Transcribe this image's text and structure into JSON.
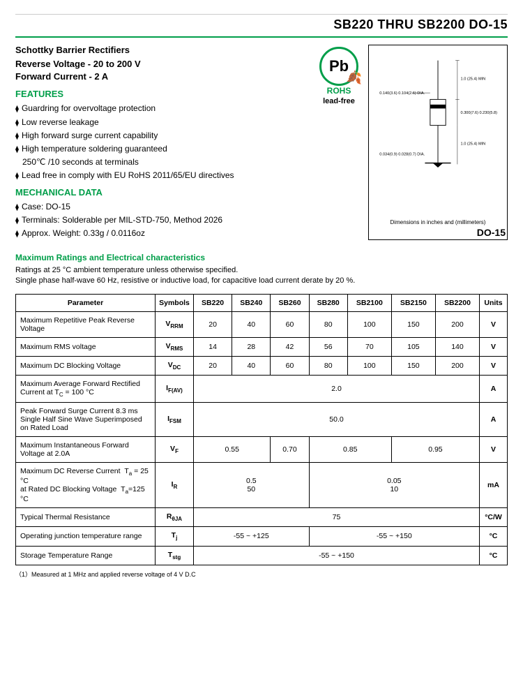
{
  "header": {
    "title": "SB220 THRU SB2200  DO-15"
  },
  "product": {
    "subtitle": "Schottky Barrier Rectifiers",
    "spec_line1": "Reverse Voltage - 20 to 200 V",
    "spec_line2": "Forward Current - 2 A"
  },
  "features": {
    "heading": "FEATURES",
    "items": [
      "Guardring for overvoltage protection",
      "Low reverse leakage",
      "High forward surge current capability",
      "High temperature soldering guaranteed"
    ],
    "indent_line": "250℃ /10 seconds at terminals",
    "last_item": "Lead free in comply with EU RoHS 2011/65/EU directives"
  },
  "mechanical": {
    "heading": "MECHANICAL DATA",
    "items": [
      "Case: DO-15",
      "Terminals: Solderable per MIL-STD-750, Method 2026",
      "Approx. Weight: 0.33g / 0.0116oz"
    ]
  },
  "badge": {
    "pb": "Pb",
    "rohs": "ROHS",
    "leadfree": "lead-free"
  },
  "package": {
    "caption": "Dimensions in inches and (millimeters)",
    "label": "DO-15",
    "dim_top": "1.0 (25.4) MIN",
    "dim_body_w": "0.140(3.6) 0.104(2.6) DIA.",
    "dim_body_h": "0.300(7.6) 0.230(5.8)",
    "dim_bot": "1.0 (25.4) MIN",
    "dim_lead": "0.034(0.9) 0.028(0.7) DIA."
  },
  "ratings": {
    "heading": "Maximum Ratings and Electrical characteristics",
    "note1": "Ratings at 25 °C ambient temperature unless otherwise specified.",
    "note2": "Single phase half-wave 60 Hz, resistive or inductive load, for capacitive load current derate by 20 %.",
    "columns": [
      "Parameter",
      "Symbols",
      "SB220",
      "SB240",
      "SB260",
      "SB280",
      "SB2100",
      "SB2150",
      "SB2200",
      "Units"
    ],
    "rows": [
      {
        "param": "Maximum Repetitive Peak Reverse Voltage",
        "sym": "V<sub>RRM</sub>",
        "cells": [
          "20",
          "40",
          "60",
          "80",
          "100",
          "150",
          "200"
        ],
        "unit": "V"
      },
      {
        "param": "Maximum RMS voltage",
        "sym": "V<sub>RMS</sub>",
        "cells": [
          "14",
          "28",
          "42",
          "56",
          "70",
          "105",
          "140"
        ],
        "unit": "V"
      },
      {
        "param": "Maximum DC Blocking Voltage",
        "sym": "V<sub>DC</sub>",
        "cells": [
          "20",
          "40",
          "60",
          "80",
          "100",
          "150",
          "200"
        ],
        "unit": "V"
      },
      {
        "param": "Maximum Average Forward Rectified Current at T<sub>C</sub> = 100 °C",
        "sym": "I<sub>F(AV)</sub>",
        "span": {
          "colspan": 7,
          "text": "2.0"
        },
        "unit": "A"
      },
      {
        "param": "Peak Forward Surge Current 8.3 ms Single Half Sine Wave Superimposed on Rated Load",
        "sym": "I<sub>FSM</sub>",
        "span": {
          "colspan": 7,
          "text": "50.0"
        },
        "unit": "A"
      }
    ],
    "vf_row": {
      "param": "Maximum Instantaneous Forward Voltage at 2.0A",
      "sym": "V<sub>F</sub>",
      "groups": [
        {
          "span": 2,
          "text": "0.55"
        },
        {
          "span": 1,
          "text": "0.70"
        },
        {
          "span": 2,
          "text": "0.85"
        },
        {
          "span": 2,
          "text": "0.95"
        }
      ],
      "unit": "V"
    },
    "ir_row": {
      "param": "Maximum DC Reverse Current&nbsp;&nbsp;T<sub>a</sub> = 25 °C<br>at Rated DC Blocking Voltage&nbsp;&nbsp;T<sub>a</sub>=125 °C",
      "sym": "I<sub>R</sub>",
      "groups": [
        {
          "span": 3,
          "text": "0.5<br>50"
        },
        {
          "span": 4,
          "text": "0.05<br>10"
        }
      ],
      "unit": "mA"
    },
    "thermal_row": {
      "param": "Typical Thermal Resistance",
      "sym": "R<sub>θJA</sub>",
      "span": {
        "colspan": 7,
        "text": "75"
      },
      "unit": "°C/W"
    },
    "tj_row": {
      "param": "Operating junction temperature range",
      "sym": "T<sub>j</sub>",
      "groups": [
        {
          "span": 3,
          "text": "-55 ~ +125"
        },
        {
          "span": 4,
          "text": "-55 ~ +150"
        }
      ],
      "unit": "°C"
    },
    "tstg_row": {
      "param": "Storage Temperature Range",
      "sym": "T<sub>stg</sub>",
      "span": {
        "colspan": 7,
        "text": "-55 ~ +150"
      },
      "unit": "°C"
    }
  },
  "footnote": "（1）Measured at 1 MHz and applied reverse voltage of 4 V D.C",
  "colors": {
    "accent": "#009e49",
    "border": "#000000",
    "text": "#000000",
    "bg": "#ffffff"
  }
}
